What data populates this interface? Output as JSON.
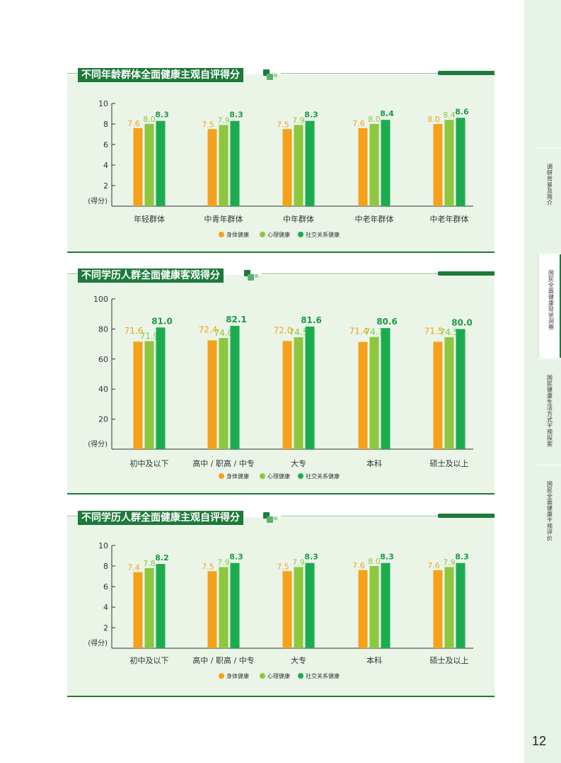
{
  "sidebar": {
    "tabs": [
      {
        "label": "调研背景及简介"
      },
      {
        "label": "国民全面健康现状洞察"
      },
      {
        "label": "国民健康生活方式干预探索"
      },
      {
        "label": "国民全面健康干预评价"
      }
    ],
    "active_index": 1,
    "page_number": "12"
  },
  "legend": {
    "items": [
      "身体健康",
      "心理健康",
      "社交关系健康"
    ]
  },
  "colors": {
    "physical": "#f5a11c",
    "mental": "#8dc63f",
    "social": "#1aac4f",
    "label_physical": "#f5a11c",
    "label_mental": "#8dc63f",
    "label_social": "#1d9a45",
    "panel_bg": "#eaf5e8",
    "accent": "#1d7a3a"
  },
  "chart_data": [
    {
      "type": "bar",
      "title": "不同年龄群体全面健康主观自评得分",
      "ylabel": "(得分)",
      "ylim": [
        0,
        10
      ],
      "yticks": [
        2,
        4,
        6,
        8,
        10
      ],
      "categories": [
        "年轻群体",
        "中青年群体",
        "中年群体",
        "中老年群体",
        "中老年群体"
      ],
      "series": [
        {
          "name": "身体健康",
          "values": [
            7.6,
            7.5,
            7.5,
            7.6,
            8.0
          ]
        },
        {
          "name": "心理健康",
          "values": [
            8.0,
            7.9,
            7.9,
            8.0,
            8.4
          ]
        },
        {
          "name": "社交关系健康",
          "values": [
            8.3,
            8.3,
            8.3,
            8.4,
            8.6
          ]
        }
      ]
    },
    {
      "type": "bar",
      "title": "不同学历人群全面健康客观得分",
      "ylabel": "(得分)",
      "ylim": [
        0,
        100
      ],
      "yticks": [
        20,
        40,
        60,
        80,
        100
      ],
      "categories": [
        "初中及以下",
        "高中 / 职高 / 中专",
        "大专",
        "本科",
        "硕士及以上"
      ],
      "series": [
        {
          "name": "身体健康",
          "values": [
            71.6,
            72.4,
            72.0,
            71.4,
            71.5
          ]
        },
        {
          "name": "心理健康",
          "values": [
            71.9,
            74.0,
            74.5,
            74.7,
            74.5
          ]
        },
        {
          "name": "社交关系健康",
          "values": [
            81.0,
            82.1,
            81.6,
            80.6,
            80.0
          ]
        }
      ]
    },
    {
      "type": "bar",
      "title": "不同学历人群全面健康主观自评得分",
      "ylabel": "(得分)",
      "ylim": [
        0,
        10
      ],
      "yticks": [
        2,
        4,
        6,
        8,
        10
      ],
      "categories": [
        "初中及以下",
        "高中 / 职高 / 中专",
        "大专",
        "本科",
        "硕士及以上"
      ],
      "series": [
        {
          "name": "身体健康",
          "values": [
            7.4,
            7.5,
            7.5,
            7.6,
            7.6
          ]
        },
        {
          "name": "心理健康",
          "values": [
            7.8,
            7.9,
            7.9,
            8.0,
            7.9
          ]
        },
        {
          "name": "社交关系健康",
          "values": [
            8.2,
            8.3,
            8.3,
            8.3,
            8.3
          ]
        }
      ]
    }
  ]
}
